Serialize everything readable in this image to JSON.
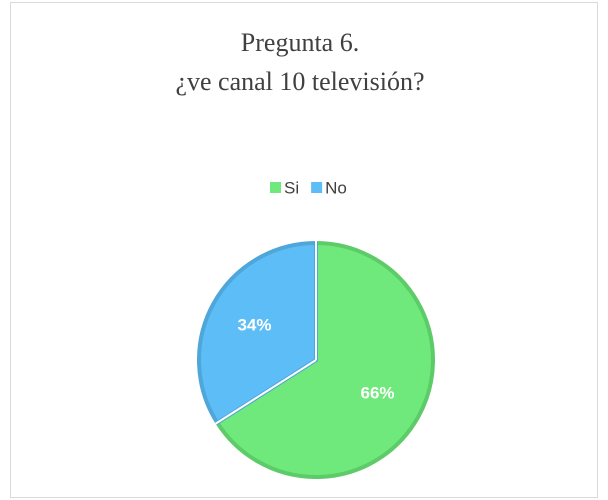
{
  "chart_data": {
    "type": "pie",
    "title": [
      "Pregunta 6.",
      "¿ve canal 10 televisión?"
    ],
    "categories": [
      "Si",
      "No"
    ],
    "values": [
      66,
      34
    ],
    "value_labels": [
      "66%",
      "34%"
    ],
    "colors": [
      "#6fe97b",
      "#5dbdf6"
    ],
    "edge_colors": [
      "#5ccb68",
      "#4fa6d9"
    ],
    "legend": "top"
  }
}
